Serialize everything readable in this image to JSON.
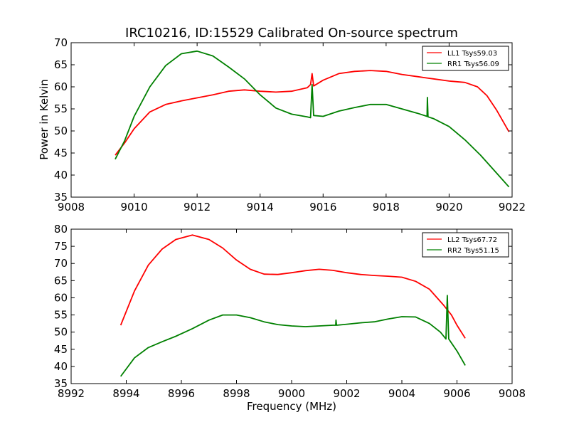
{
  "chart_data": {
    "type": "line",
    "title": "IRC10216, ID:15529 Calibrated On-source spectrum",
    "xlabel": "Frequency (MHz)",
    "ylabel": "Power in Kelvin",
    "grid": false,
    "panels": [
      {
        "xlim": [
          9008,
          9022
        ],
        "ylim": [
          35,
          70
        ],
        "xticks": [
          "9008",
          "9010",
          "9012",
          "9014",
          "9016",
          "9018",
          "9020",
          "9022"
        ],
        "yticks": [
          "35",
          "40",
          "45",
          "50",
          "55",
          "60",
          "65",
          "70"
        ],
        "legend_position": "top-right",
        "series": [
          {
            "name": "LL1 Tsys59.03",
            "color": "#ff0000",
            "x": [
              9009.4,
              9009.7,
              9010.0,
              9010.5,
              9011.0,
              9011.5,
              9012.0,
              9012.5,
              9013.0,
              9013.5,
              9014.0,
              9014.5,
              9015.0,
              9015.5,
              9015.6,
              9015.65,
              9015.7,
              9016.0,
              9016.5,
              9017.0,
              9017.5,
              9018.0,
              9018.5,
              9019.0,
              9019.3,
              9019.5,
              9020.0,
              9020.5,
              9020.9,
              9021.2,
              9021.5,
              9021.9
            ],
            "values": [
              44.5,
              47.3,
              50.5,
              54.3,
              56.0,
              56.8,
              57.5,
              58.2,
              59.0,
              59.3,
              59.0,
              58.8,
              59.0,
              59.8,
              60.5,
              63.0,
              60.2,
              61.5,
              63.0,
              63.5,
              63.7,
              63.5,
              62.8,
              62.3,
              62.0,
              61.8,
              61.3,
              61.0,
              60.0,
              58.0,
              54.8,
              49.8
            ]
          },
          {
            "name": "RR1 Tsys56.09",
            "color": "#008000",
            "x": [
              9009.4,
              9009.7,
              9010.0,
              9010.5,
              9011.0,
              9011.5,
              9012.0,
              9012.5,
              9013.0,
              9013.5,
              9014.0,
              9014.5,
              9015.0,
              9015.5,
              9015.6,
              9015.65,
              9015.7,
              9016.0,
              9016.5,
              9017.0,
              9017.5,
              9018.0,
              9018.5,
              9019.0,
              9019.3,
              9019.31,
              9019.33,
              9019.5,
              9020.0,
              9020.5,
              9021.0,
              9021.5,
              9021.9
            ],
            "values": [
              43.6,
              47.8,
              53.3,
              60.0,
              64.8,
              67.5,
              68.1,
              67.0,
              64.5,
              61.8,
              58.2,
              55.2,
              53.8,
              53.2,
              53.0,
              60.5,
              53.5,
              53.3,
              54.5,
              55.3,
              56.0,
              56.0,
              55.0,
              54.0,
              53.3,
              57.6,
              53.2,
              52.8,
              51.0,
              48.0,
              44.5,
              40.5,
              37.3
            ]
          }
        ]
      },
      {
        "xlim": [
          8992,
          9008
        ],
        "ylim": [
          35,
          80
        ],
        "xticks": [
          "8992",
          "8994",
          "8996",
          "8998",
          "9000",
          "9002",
          "9004",
          "9006",
          "9008"
        ],
        "yticks": [
          "35",
          "40",
          "45",
          "50",
          "55",
          "60",
          "65",
          "70",
          "75",
          "80"
        ],
        "legend_position": "top-right",
        "series": [
          {
            "name": "LL2 Tsys67.72",
            "color": "#ff0000",
            "x": [
              8993.8,
              8994.3,
              8994.8,
              8995.3,
              8995.8,
              8996.4,
              8997.0,
              8997.5,
              8998.0,
              8998.5,
              8999.0,
              8999.5,
              9000.0,
              9000.5,
              9001.0,
              9001.5,
              9002.0,
              9002.5,
              9003.0,
              9003.5,
              9004.0,
              9004.5,
              9005.0,
              9005.5,
              9005.8,
              9006.0,
              9006.3
            ],
            "values": [
              52.0,
              62.0,
              69.5,
              74.2,
              77.0,
              78.3,
              77.0,
              74.5,
              71.0,
              68.3,
              66.9,
              66.8,
              67.3,
              67.9,
              68.3,
              68.0,
              67.3,
              66.8,
              66.5,
              66.3,
              66.0,
              64.8,
              62.5,
              58.0,
              55.0,
              52.0,
              48.2
            ]
          },
          {
            "name": "RR2 Tsys51.15",
            "color": "#008000",
            "x": [
              8993.8,
              8994.3,
              8994.8,
              8995.3,
              8995.8,
              8996.4,
              8997.0,
              8997.5,
              8998.0,
              8998.5,
              8999.0,
              8999.5,
              9000.0,
              9000.5,
              9001.0,
              9001.5,
              9001.6,
              9001.61,
              9001.63,
              9002.0,
              9002.5,
              9003.0,
              9003.5,
              9004.0,
              9004.5,
              9005.0,
              9005.4,
              9005.6,
              9005.65,
              9005.7,
              9006.0,
              9006.3
            ],
            "values": [
              37.1,
              42.5,
              45.5,
              47.2,
              48.8,
              51.0,
              53.5,
              55.0,
              55.0,
              54.2,
              53.0,
              52.2,
              51.8,
              51.6,
              51.8,
              52.0,
              52.0,
              53.5,
              52.0,
              52.3,
              52.7,
              53.0,
              53.8,
              54.5,
              54.4,
              52.5,
              50.0,
              48.0,
              60.7,
              48.0,
              44.5,
              40.3
            ]
          }
        ]
      }
    ]
  }
}
